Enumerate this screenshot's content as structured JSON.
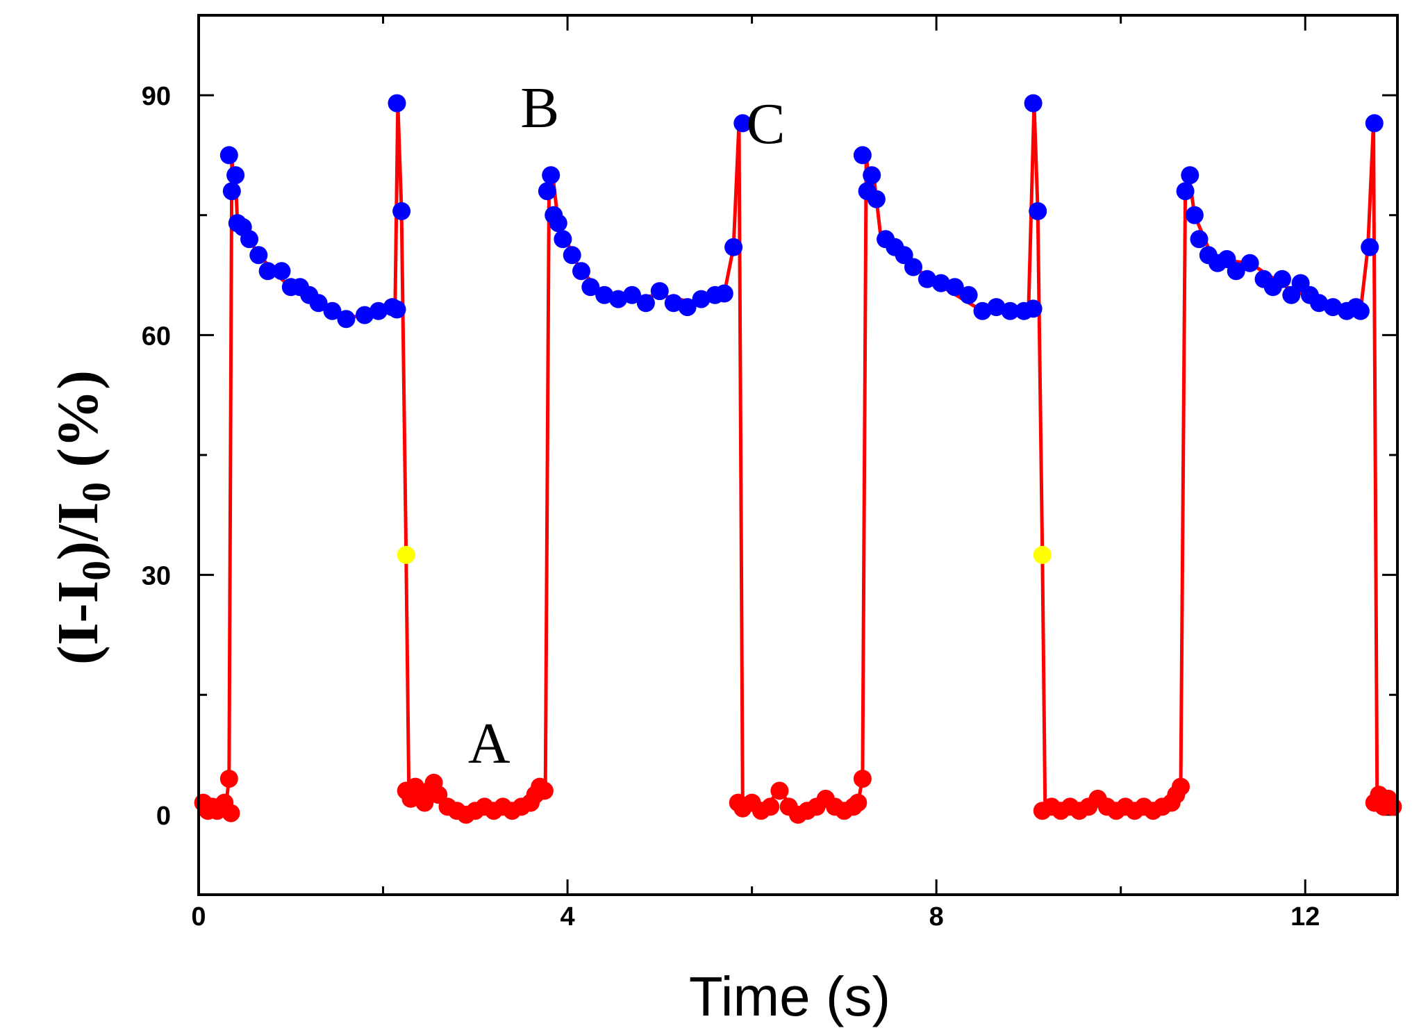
{
  "chart_data": {
    "type": "line",
    "title": "",
    "xlabel": "Time (s)",
    "ylabel": {
      "parts": [
        "(I-I",
        "0",
        ")/I",
        "0",
        " (%)"
      ]
    },
    "xlim": [
      0,
      13
    ],
    "ylim": [
      -10,
      100
    ],
    "xticks": [
      0,
      4,
      8,
      12
    ],
    "xtick_labels": [
      "0",
      "4",
      "8",
      "12"
    ],
    "yticks": [
      0,
      30,
      60,
      90
    ],
    "ytick_labels": [
      "0",
      "30",
      "60",
      "90"
    ],
    "annotations": [
      {
        "text": "A",
        "x": 3.15,
        "y": 6.5
      },
      {
        "text": "B",
        "x": 3.7,
        "y": 86
      },
      {
        "text": "C",
        "x": 6.15,
        "y": 84
      }
    ],
    "line_color": "#ff0000",
    "colors": {
      "low": "#ff0000",
      "high": "#0000ff",
      "transition": "#ffff00"
    },
    "series": [
      {
        "name": "low-state",
        "color": "#ff0000",
        "points": [
          [
            0.05,
            1.5
          ],
          [
            0.1,
            0.5
          ],
          [
            0.15,
            1
          ],
          [
            0.2,
            0.5
          ],
          [
            0.28,
            1.5
          ],
          [
            0.33,
            4.5
          ],
          [
            0.35,
            0.2
          ],
          [
            2.25,
            3
          ],
          [
            2.3,
            2
          ],
          [
            2.35,
            3.5
          ],
          [
            2.4,
            2.5
          ],
          [
            2.45,
            1.5
          ],
          [
            2.5,
            3
          ],
          [
            2.55,
            4
          ],
          [
            2.6,
            2.5
          ],
          [
            2.7,
            1
          ],
          [
            2.8,
            0.5
          ],
          [
            2.9,
            0
          ],
          [
            3.0,
            0.5
          ],
          [
            3.1,
            1
          ],
          [
            3.2,
            0.5
          ],
          [
            3.3,
            1
          ],
          [
            3.4,
            0.5
          ],
          [
            3.5,
            1
          ],
          [
            3.6,
            1.5
          ],
          [
            3.65,
            2.5
          ],
          [
            3.7,
            3.5
          ],
          [
            3.75,
            3
          ],
          [
            5.85,
            1.5
          ],
          [
            5.9,
            0.8
          ],
          [
            6.0,
            1.5
          ],
          [
            6.1,
            0.5
          ],
          [
            6.2,
            1
          ],
          [
            6.3,
            3
          ],
          [
            6.4,
            1
          ],
          [
            6.5,
            0
          ],
          [
            6.6,
            0.5
          ],
          [
            6.7,
            1
          ],
          [
            6.8,
            2
          ],
          [
            6.9,
            1
          ],
          [
            7.0,
            0.5
          ],
          [
            7.1,
            1
          ],
          [
            7.15,
            1.5
          ],
          [
            7.2,
            4.5
          ],
          [
            9.15,
            0.5
          ],
          [
            9.25,
            1
          ],
          [
            9.35,
            0.5
          ],
          [
            9.45,
            1
          ],
          [
            9.55,
            0.5
          ],
          [
            9.65,
            1
          ],
          [
            9.75,
            2
          ],
          [
            9.85,
            1
          ],
          [
            9.95,
            0.5
          ],
          [
            10.05,
            1
          ],
          [
            10.15,
            0.5
          ],
          [
            10.25,
            1
          ],
          [
            10.35,
            0.5
          ],
          [
            10.45,
            1
          ],
          [
            10.55,
            1.5
          ],
          [
            10.6,
            2.5
          ],
          [
            10.65,
            3.5
          ],
          [
            12.75,
            1.5
          ],
          [
            12.8,
            2.5
          ],
          [
            12.85,
            1
          ],
          [
            12.9,
            2
          ],
          [
            12.95,
            1
          ]
        ]
      },
      {
        "name": "high-state",
        "color": "#0000ff",
        "points": [
          [
            0.33,
            82.5
          ],
          [
            0.36,
            78
          ],
          [
            0.4,
            80
          ],
          [
            0.42,
            74
          ],
          [
            0.48,
            73.5
          ],
          [
            0.55,
            72
          ],
          [
            0.65,
            70
          ],
          [
            0.75,
            68
          ],
          [
            0.9,
            68
          ],
          [
            1.0,
            66
          ],
          [
            1.1,
            66
          ],
          [
            1.2,
            65
          ],
          [
            1.3,
            64
          ],
          [
            1.45,
            63
          ],
          [
            1.6,
            62
          ],
          [
            1.8,
            62.5
          ],
          [
            1.95,
            63
          ],
          [
            2.1,
            63.5
          ],
          [
            2.15,
            63.2
          ],
          [
            2.15,
            89
          ],
          [
            2.2,
            75.5
          ],
          [
            3.78,
            78
          ],
          [
            3.82,
            80
          ],
          [
            3.85,
            75
          ],
          [
            3.9,
            74
          ],
          [
            3.95,
            72
          ],
          [
            4.05,
            70
          ],
          [
            4.15,
            68
          ],
          [
            4.25,
            66
          ],
          [
            4.4,
            65
          ],
          [
            4.55,
            64.5
          ],
          [
            4.7,
            65
          ],
          [
            4.85,
            64
          ],
          [
            5.0,
            65.5
          ],
          [
            5.15,
            64
          ],
          [
            5.3,
            63.5
          ],
          [
            5.45,
            64.5
          ],
          [
            5.6,
            65
          ],
          [
            5.7,
            65.2
          ],
          [
            5.8,
            71
          ],
          [
            5.9,
            86.5
          ],
          [
            7.2,
            82.5
          ],
          [
            7.25,
            78
          ],
          [
            7.3,
            80
          ],
          [
            7.35,
            77
          ],
          [
            7.45,
            72
          ],
          [
            7.55,
            71
          ],
          [
            7.65,
            70
          ],
          [
            7.75,
            68.5
          ],
          [
            7.9,
            67
          ],
          [
            8.05,
            66.5
          ],
          [
            8.2,
            66
          ],
          [
            8.35,
            65
          ],
          [
            8.5,
            63
          ],
          [
            8.65,
            63.5
          ],
          [
            8.8,
            63
          ],
          [
            8.95,
            63
          ],
          [
            9.05,
            63.3
          ],
          [
            9.05,
            89
          ],
          [
            9.1,
            75.5
          ],
          [
            10.7,
            78
          ],
          [
            10.75,
            80
          ],
          [
            10.8,
            75
          ],
          [
            10.85,
            72
          ],
          [
            10.95,
            70
          ],
          [
            11.05,
            69
          ],
          [
            11.15,
            69.5
          ],
          [
            11.25,
            68
          ],
          [
            11.4,
            69
          ],
          [
            11.55,
            67
          ],
          [
            11.65,
            66
          ],
          [
            11.75,
            67
          ],
          [
            11.85,
            65
          ],
          [
            11.95,
            66.5
          ],
          [
            12.05,
            65
          ],
          [
            12.15,
            64
          ],
          [
            12.3,
            63.5
          ],
          [
            12.45,
            63
          ],
          [
            12.55,
            63.5
          ],
          [
            12.6,
            63
          ],
          [
            12.7,
            71
          ],
          [
            12.75,
            86.5
          ]
        ]
      },
      {
        "name": "transition",
        "color": "#ffff00",
        "points": [
          [
            2.25,
            32.5
          ],
          [
            9.15,
            32.5
          ]
        ]
      }
    ],
    "trace": [
      [
        0.0,
        0.5
      ],
      [
        0.1,
        1
      ],
      [
        0.2,
        0.5
      ],
      [
        0.28,
        1
      ],
      [
        0.3,
        1.5
      ],
      [
        0.33,
        4.5
      ],
      [
        0.36,
        82.5
      ],
      [
        0.38,
        78
      ],
      [
        0.4,
        80
      ],
      [
        0.42,
        74
      ],
      [
        0.5,
        73
      ],
      [
        0.6,
        71
      ],
      [
        0.8,
        68
      ],
      [
        1.0,
        66
      ],
      [
        1.3,
        64
      ],
      [
        1.6,
        62
      ],
      [
        2.0,
        63.3
      ],
      [
        2.13,
        63.2
      ],
      [
        2.16,
        89
      ],
      [
        2.2,
        75.5
      ],
      [
        2.25,
        32.5
      ],
      [
        2.28,
        3
      ],
      [
        2.4,
        2.5
      ],
      [
        2.6,
        3
      ],
      [
        2.8,
        0.5
      ],
      [
        3.0,
        0.5
      ],
      [
        3.3,
        1
      ],
      [
        3.6,
        1.5
      ],
      [
        3.72,
        3.5
      ],
      [
        3.76,
        3
      ],
      [
        3.8,
        78
      ],
      [
        3.84,
        80
      ],
      [
        3.9,
        74
      ],
      [
        4.1,
        69
      ],
      [
        4.3,
        66
      ],
      [
        4.6,
        64.5
      ],
      [
        5.0,
        65
      ],
      [
        5.4,
        64
      ],
      [
        5.7,
        65.2
      ],
      [
        5.8,
        71
      ],
      [
        5.86,
        86.5
      ],
      [
        5.9,
        1.5
      ],
      [
        6.1,
        0.5
      ],
      [
        6.3,
        3
      ],
      [
        6.5,
        0
      ],
      [
        6.8,
        2
      ],
      [
        7.0,
        0.5
      ],
      [
        7.15,
        1.5
      ],
      [
        7.2,
        4.5
      ],
      [
        7.24,
        82.5
      ],
      [
        7.28,
        78
      ],
      [
        7.32,
        80
      ],
      [
        7.4,
        72
      ],
      [
        7.7,
        69
      ],
      [
        8.0,
        66.5
      ],
      [
        8.5,
        63
      ],
      [
        9.0,
        63.3
      ],
      [
        9.06,
        89
      ],
      [
        9.1,
        75.5
      ],
      [
        9.15,
        32.5
      ],
      [
        9.18,
        0.5
      ],
      [
        9.5,
        0.8
      ],
      [
        9.8,
        1.5
      ],
      [
        10.2,
        0.8
      ],
      [
        10.55,
        1.5
      ],
      [
        10.65,
        3.5
      ],
      [
        10.7,
        78
      ],
      [
        10.74,
        80
      ],
      [
        10.8,
        75
      ],
      [
        11.0,
        69.5
      ],
      [
        11.4,
        69
      ],
      [
        11.8,
        66
      ],
      [
        12.2,
        64
      ],
      [
        12.6,
        63
      ],
      [
        12.68,
        71
      ],
      [
        12.74,
        86.5
      ],
      [
        12.78,
        1.5
      ],
      [
        12.85,
        1
      ],
      [
        13.0,
        1
      ]
    ]
  }
}
